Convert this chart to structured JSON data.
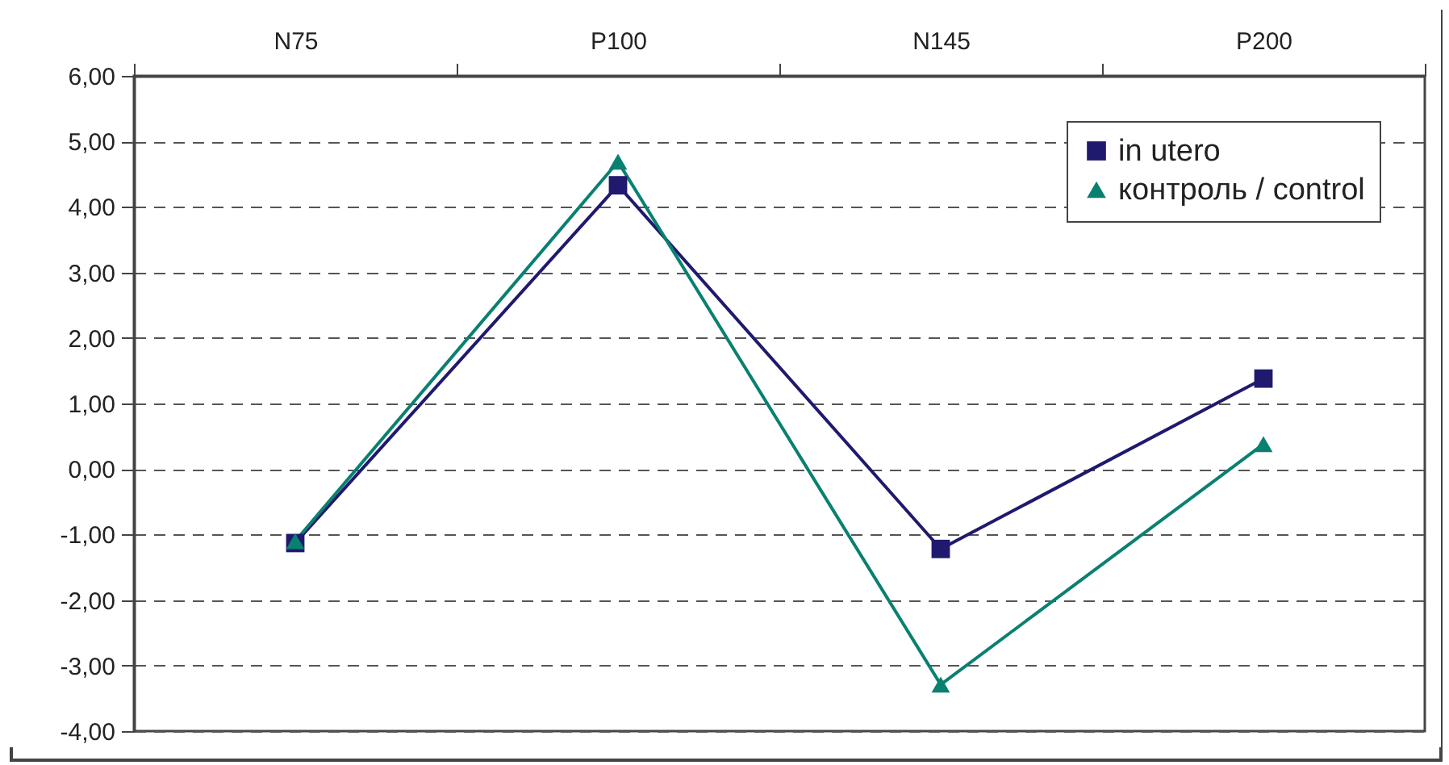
{
  "chart_data": {
    "type": "line",
    "categories": [
      "N75",
      "P100",
      "N145",
      "P200"
    ],
    "series": [
      {
        "name": "in utero",
        "color": "#1f1a6e",
        "marker": "square",
        "values": [
          -1.13,
          4.33,
          -1.22,
          1.38
        ]
      },
      {
        "name": "контроль / control",
        "color": "#0a8070",
        "marker": "triangle",
        "values": [
          -1.1,
          4.69,
          -3.29,
          0.38
        ]
      }
    ],
    "ylim": [
      -4,
      6
    ],
    "yticks": [
      {
        "value": -4,
        "label": "-4,00"
      },
      {
        "value": -3,
        "label": "-3,00"
      },
      {
        "value": -2,
        "label": "-2,00"
      },
      {
        "value": -1,
        "label": "-1,00"
      },
      {
        "value": 0,
        "label": "0,00"
      },
      {
        "value": 1,
        "label": "1,00"
      },
      {
        "value": 2,
        "label": "2,00"
      },
      {
        "value": 3,
        "label": "3,00"
      },
      {
        "value": 4,
        "label": "4,00"
      },
      {
        "value": 5,
        "label": "5,00"
      },
      {
        "value": 6,
        "label": "6,00"
      }
    ],
    "grid": "y",
    "legend": "top right",
    "line_style": "solid"
  }
}
